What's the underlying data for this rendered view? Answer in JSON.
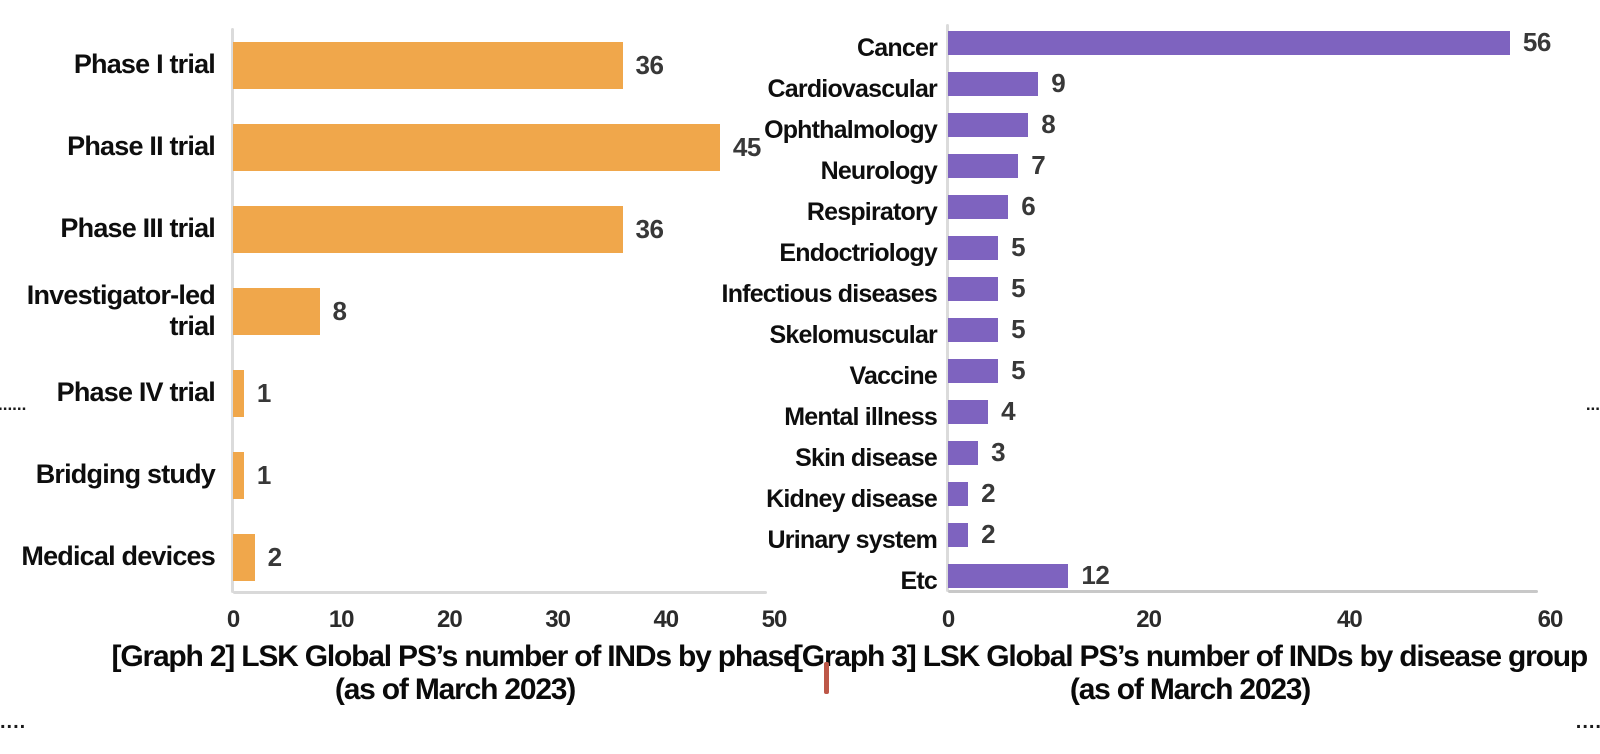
{
  "decorations": {
    "left_mid_dots": "......",
    "right_mid_dots": "...",
    "bottom_left_dots": "....",
    "bottom_right_dots": "....",
    "red_tick_color": "#BD5748"
  },
  "chart_data": [
    {
      "type": "bar",
      "orientation": "horizontal",
      "title": "[Graph 2] LSK Global PS’s number of INDs by phase",
      "subtitle": "(as of March 2023)",
      "categories": [
        "Phase I trial",
        "Phase II trial",
        "Phase III trial",
        "Investigator-led\ntrial",
        "Phase IV trial",
        "Bridging study",
        "Medical devices"
      ],
      "values": [
        36,
        45,
        36,
        8,
        1,
        1,
        2
      ],
      "bar_color": "#F0A74B",
      "value_label_color": "#383838",
      "xlim": [
        0,
        50
      ],
      "x_ticks": [
        0,
        10,
        20,
        30,
        40,
        50
      ],
      "grid": false,
      "legend": false
    },
    {
      "type": "bar",
      "orientation": "horizontal",
      "title": "[Graph 3] LSK Global PS’s number of INDs by disease group",
      "subtitle": "(as of March 2023)",
      "categories": [
        "Cancer",
        "Cardiovascular",
        "Ophthalmology",
        "Neurology",
        "Respiratory",
        "Endoctriology",
        "Infectious diseases",
        "Skelomuscular",
        "Vaccine",
        "Mental illness",
        "Skin disease",
        "Kidney disease",
        "Urinary system",
        "Etc"
      ],
      "values": [
        56,
        9,
        8,
        7,
        6,
        5,
        5,
        5,
        5,
        4,
        3,
        2,
        2,
        12
      ],
      "bar_color": "#7E63BF",
      "value_label_color": "#383838",
      "xlim": [
        0,
        60
      ],
      "x_ticks": [
        0,
        20,
        40,
        60
      ],
      "grid": false,
      "legend": false
    }
  ]
}
